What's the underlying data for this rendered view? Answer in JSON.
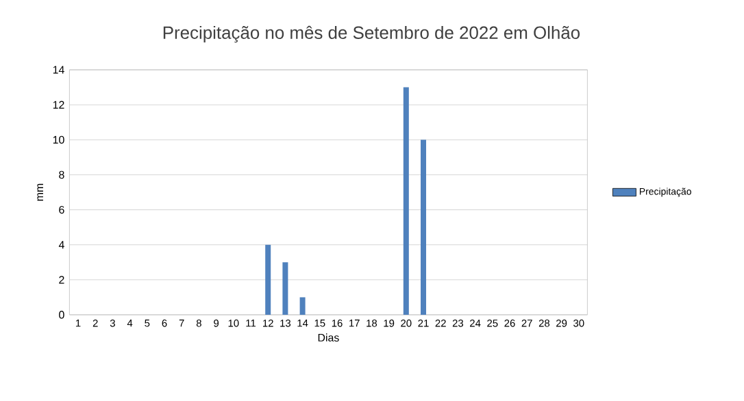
{
  "chart_data": {
    "type": "bar",
    "title": "Precipitação no mês de Setembro de 2022 em Olhão",
    "xlabel": "Dias",
    "ylabel": "mm",
    "categories": [
      "1",
      "2",
      "3",
      "4",
      "5",
      "6",
      "7",
      "8",
      "9",
      "10",
      "11",
      "12",
      "13",
      "14",
      "15",
      "16",
      "17",
      "18",
      "19",
      "20",
      "21",
      "22",
      "23",
      "24",
      "25",
      "26",
      "27",
      "28",
      "29",
      "30"
    ],
    "series": [
      {
        "name": "Precipitação",
        "color": "#4f81bd",
        "values": [
          0,
          0,
          0,
          0,
          0,
          0,
          0,
          0,
          0,
          0,
          0,
          4,
          3,
          1,
          0,
          0,
          0,
          0,
          0,
          13,
          10,
          0,
          0,
          0,
          0,
          0,
          0,
          0,
          0,
          0
        ]
      }
    ],
    "ylim": [
      0,
      14
    ],
    "yticks": [
      0,
      2,
      4,
      6,
      8,
      10,
      12,
      14
    ],
    "grid": "y",
    "legend": "right"
  }
}
